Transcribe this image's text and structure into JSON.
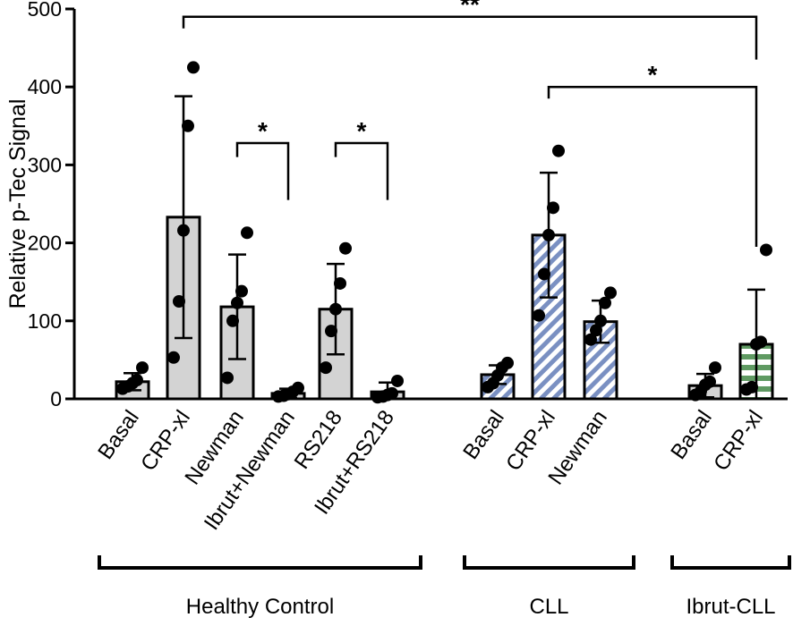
{
  "chart_data": {
    "type": "bar",
    "title": "",
    "xlabel": "",
    "ylabel": "Relative p-Tec Signal",
    "ylim": [
      0,
      500
    ],
    "yticks": [
      0,
      100,
      200,
      300,
      400,
      500
    ],
    "grid": false,
    "legend": "none",
    "bars": [
      {
        "label": "Basal",
        "group": "Healthy Control",
        "mean": 22,
        "sd": 11,
        "fill": "gray",
        "points": [
          13,
          16,
          20,
          24,
          40
        ]
      },
      {
        "label": "CRP-xl",
        "group": "Healthy Control",
        "mean": 233,
        "sd": 155,
        "fill": "gray",
        "points": [
          53,
          125,
          216,
          350,
          425
        ]
      },
      {
        "label": "Newman",
        "group": "Healthy Control",
        "mean": 118,
        "sd": 67,
        "fill": "gray",
        "points": [
          27,
          100,
          123,
          138,
          213
        ]
      },
      {
        "label": "Ibrut+Newman",
        "group": "Healthy Control",
        "mean": 7,
        "sd": 6,
        "fill": "gray",
        "points": [
          3,
          4,
          6,
          9,
          14
        ]
      },
      {
        "label": "RS218",
        "group": "Healthy Control",
        "mean": 115,
        "sd": 58,
        "fill": "gray",
        "points": [
          40,
          87,
          115,
          148,
          193
        ]
      },
      {
        "label": "Ibrut+RS218",
        "group": "Healthy Control",
        "mean": 9,
        "sd": 12,
        "fill": "gray",
        "points": [
          2,
          3,
          5,
          7,
          23
        ]
      },
      {
        "label": "Basal",
        "group": "CLL",
        "mean": 31,
        "sd": 12,
        "fill": "blue-hatched",
        "points": [
          15,
          20,
          30,
          40,
          46
        ]
      },
      {
        "label": "CRP-xl",
        "group": "CLL",
        "mean": 210,
        "sd": 80,
        "fill": "blue-hatched",
        "points": [
          107,
          160,
          210,
          245,
          318
        ]
      },
      {
        "label": "Newman",
        "group": "CLL",
        "mean": 99,
        "sd": 27,
        "fill": "blue-hatched",
        "points": [
          76,
          88,
          100,
          123,
          136
        ]
      },
      {
        "label": "Basal",
        "group": "Ibrut-CLL",
        "mean": 17,
        "sd": 15,
        "fill": "gray",
        "points": [
          5,
          10,
          18,
          22,
          40
        ]
      },
      {
        "label": "CRP-xl",
        "group": "Ibrut-CLL",
        "mean": 70,
        "sd": 70,
        "fill": "green-hatched",
        "points": [
          12,
          15,
          70,
          73,
          191
        ]
      }
    ],
    "groups": [
      {
        "name": "Healthy Control",
        "first": 0,
        "last": 5
      },
      {
        "name": "CLL",
        "first": 6,
        "last": 8
      },
      {
        "name": "Ibrut-CLL",
        "first": 9,
        "last": 10
      }
    ],
    "significance": [
      {
        "from": 1,
        "to": 10,
        "label": "**",
        "y": 490,
        "leftDrop": 475,
        "rightDrop": 435
      },
      {
        "from": 7,
        "to": 10,
        "label": "*",
        "y": 400,
        "leftDrop": 385,
        "rightDrop": 195
      },
      {
        "from": 2,
        "to": 3,
        "label": "*",
        "y": 328,
        "leftDrop": 310,
        "rightDrop": 255
      },
      {
        "from": 4,
        "to": 5,
        "label": "*",
        "y": 328,
        "leftDrop": 310,
        "rightDrop": 255
      }
    ],
    "colors": {
      "gray_fill": "#d3d3d3",
      "blue_stripe": "#7a90c2",
      "green_stripe": "#5f9a62",
      "stroke": "#000000"
    }
  }
}
